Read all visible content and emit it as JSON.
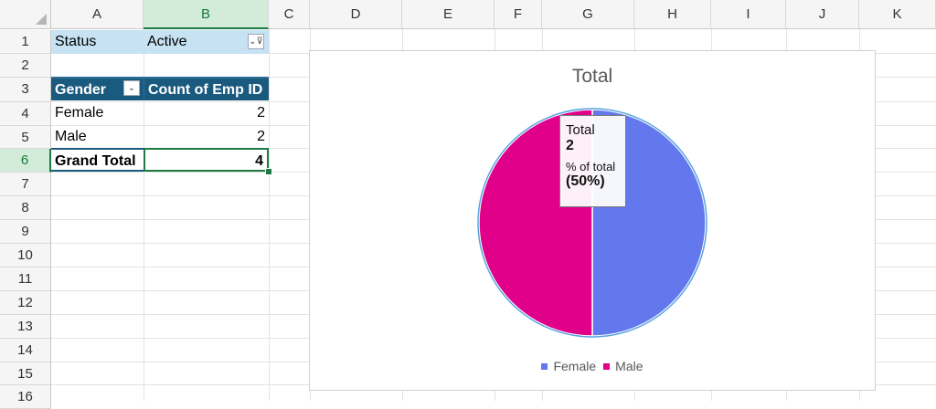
{
  "columns": [
    "A",
    "B",
    "C",
    "D",
    "E",
    "F",
    "G",
    "H",
    "I",
    "J",
    "K"
  ],
  "rows": [
    "1",
    "2",
    "3",
    "4",
    "5",
    "6",
    "7",
    "8",
    "9",
    "10",
    "11",
    "12",
    "13",
    "14",
    "15",
    "16"
  ],
  "selected": {
    "column": "B",
    "row": "6"
  },
  "pivot": {
    "filter": {
      "label": "Status",
      "value": "Active"
    },
    "header": {
      "row_label": "Gender",
      "value_label": "Count of Emp ID"
    },
    "rows": [
      {
        "label": "Female",
        "value": "2"
      },
      {
        "label": "Male",
        "value": "2"
      }
    ],
    "total": {
      "label": "Grand Total",
      "value": "4"
    }
  },
  "chart_data": {
    "type": "pie",
    "title": "Total",
    "categories": [
      "Female",
      "Male"
    ],
    "values": [
      2,
      2
    ],
    "colors": [
      "#6478ee",
      "#e0008a"
    ],
    "legend": "bottom"
  },
  "tooltip": {
    "series": "Total",
    "value": "2",
    "pct_label": "% of total",
    "pct_value": "(50%)"
  },
  "icons": {
    "filter_button": "filter-dropdown-icon",
    "row_label_button": "chevron-down-icon"
  }
}
